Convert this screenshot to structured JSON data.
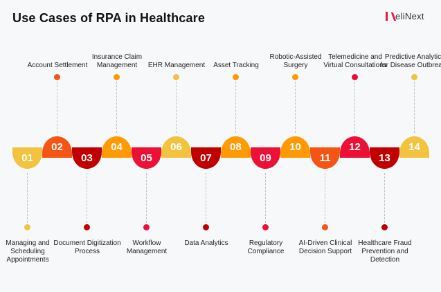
{
  "title": "Use Cases of RPA in Healthcare",
  "logo": "eliNext",
  "colors": {
    "yellow": "#f2c33f",
    "orange_red": "#f45515",
    "dark_red": "#c00000",
    "orange": "#ff9a05",
    "crimson": "#ec1036"
  },
  "items": [
    {
      "num": "01",
      "label": "Managing and Scheduling Appointments",
      "color": "#f2c33f"
    },
    {
      "num": "02",
      "label": "Account Settlement",
      "color": "#f45515"
    },
    {
      "num": "03",
      "label": "Document Digitization Process",
      "color": "#c00000"
    },
    {
      "num": "04",
      "label": "Insurance Claim Management",
      "color": "#ff9a05"
    },
    {
      "num": "05",
      "label": "Workflow Management",
      "color": "#ec1036"
    },
    {
      "num": "06",
      "label": "EHR Management",
      "color": "#f2c33f"
    },
    {
      "num": "07",
      "label": "Data Analytics",
      "color": "#c00000"
    },
    {
      "num": "08",
      "label": "Asset Tracking",
      "color": "#ff9a05"
    },
    {
      "num": "09",
      "label": "Regulatory Compliance",
      "color": "#ec1036"
    },
    {
      "num": "10",
      "label": "Robotic-Assisted Surgery",
      "color": "#ff9a05"
    },
    {
      "num": "11",
      "label": "AI-Driven Clinical Decision Support",
      "color": "#f45515"
    },
    {
      "num": "12",
      "label": "Telemedicine and Virtual Consultations",
      "color": "#ec1036"
    },
    {
      "num": "13",
      "label": "Healthcare Fraud Prevention and Detection",
      "color": "#c00000"
    },
    {
      "num": "14",
      "label": "Predictive Analytics for Disease Outbreaks",
      "color": "#f2c33f"
    }
  ]
}
